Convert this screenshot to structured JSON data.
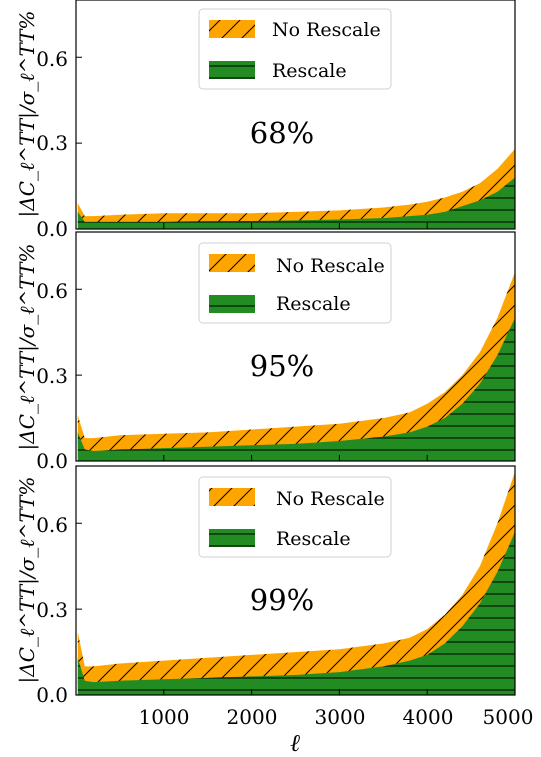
{
  "colors": {
    "no_rescale": "#FFA500",
    "rescale": "#228B22"
  },
  "chart_data": [
    {
      "type": "area",
      "label": "68%",
      "ylabel": "|ΔC_ℓ^TT|/σ_ℓ^TT%",
      "xlim": [
        0,
        5000
      ],
      "ylim": [
        0,
        0.8
      ],
      "yticks": [
        "0.0",
        "0.3",
        "0.6"
      ],
      "legend": [
        "No Rescale",
        "Rescale"
      ],
      "legend_position": "top-center",
      "series": [
        {
          "name": "No Rescale",
          "hatch": "diagonal",
          "x": [
            20,
            100,
            200,
            500,
            1000,
            1500,
            2000,
            2500,
            3000,
            3500,
            3800,
            4000,
            4200,
            4400,
            4600,
            4800,
            5000
          ],
          "y": [
            0.09,
            0.045,
            0.045,
            0.05,
            0.055,
            0.055,
            0.055,
            0.06,
            0.065,
            0.075,
            0.085,
            0.095,
            0.11,
            0.13,
            0.16,
            0.21,
            0.28
          ]
        },
        {
          "name": "Rescale",
          "hatch": "horizontal",
          "x": [
            20,
            100,
            200,
            500,
            1000,
            1500,
            2000,
            2500,
            3000,
            3500,
            3800,
            4000,
            4200,
            4400,
            4600,
            4800,
            5000
          ],
          "y": [
            0.06,
            0.025,
            0.025,
            0.025,
            0.025,
            0.027,
            0.028,
            0.03,
            0.033,
            0.038,
            0.045,
            0.05,
            0.06,
            0.08,
            0.1,
            0.13,
            0.18
          ]
        }
      ]
    },
    {
      "type": "area",
      "label": "95%",
      "ylabel": "|ΔC_ℓ^TT|/σ_ℓ^TT%",
      "xlim": [
        0,
        5000
      ],
      "ylim": [
        0,
        0.8
      ],
      "yticks": [
        "0.0",
        "0.3",
        "0.6"
      ],
      "legend": [
        "No Rescale",
        "Rescale"
      ],
      "legend_position": "top-center",
      "series": [
        {
          "name": "No Rescale",
          "hatch": "diagonal",
          "x": [
            20,
            100,
            200,
            500,
            1000,
            1500,
            2000,
            2500,
            3000,
            3500,
            3800,
            4000,
            4200,
            4400,
            4600,
            4800,
            5000
          ],
          "y": [
            0.16,
            0.08,
            0.08,
            0.09,
            0.095,
            0.1,
            0.11,
            0.12,
            0.13,
            0.15,
            0.17,
            0.2,
            0.24,
            0.3,
            0.38,
            0.5,
            0.66
          ]
        },
        {
          "name": "Rescale",
          "hatch": "horizontal",
          "x": [
            20,
            100,
            200,
            500,
            1000,
            1500,
            2000,
            2500,
            3000,
            3500,
            3800,
            4000,
            4200,
            4400,
            4600,
            4800,
            5000
          ],
          "y": [
            0.1,
            0.04,
            0.035,
            0.04,
            0.045,
            0.05,
            0.055,
            0.06,
            0.07,
            0.085,
            0.1,
            0.12,
            0.15,
            0.2,
            0.27,
            0.37,
            0.5
          ]
        }
      ]
    },
    {
      "type": "area",
      "label": "99%",
      "ylabel": "|ΔC_ℓ^TT|/σ_ℓ^TT%",
      "xlabel": "ℓ",
      "xlim": [
        0,
        5000
      ],
      "ylim": [
        0,
        0.8
      ],
      "yticks": [
        "0.0",
        "0.3",
        "0.6"
      ],
      "xticks": [
        "1000",
        "2000",
        "3000",
        "4000",
        "5000"
      ],
      "legend": [
        "No Rescale",
        "Rescale"
      ],
      "legend_position": "top-center",
      "series": [
        {
          "name": "No Rescale",
          "hatch": "diagonal",
          "x": [
            20,
            100,
            200,
            500,
            1000,
            1500,
            2000,
            2500,
            3000,
            3500,
            3800,
            4000,
            4200,
            4400,
            4600,
            4800,
            5000
          ],
          "y": [
            0.22,
            0.1,
            0.1,
            0.11,
            0.12,
            0.13,
            0.14,
            0.15,
            0.16,
            0.18,
            0.2,
            0.23,
            0.28,
            0.35,
            0.45,
            0.6,
            0.78
          ]
        },
        {
          "name": "Rescale",
          "hatch": "horizontal",
          "x": [
            20,
            100,
            200,
            500,
            1000,
            1500,
            2000,
            2500,
            3000,
            3500,
            3800,
            4000,
            4200,
            4400,
            4600,
            4800,
            5000
          ],
          "y": [
            0.13,
            0.05,
            0.045,
            0.05,
            0.055,
            0.06,
            0.065,
            0.07,
            0.08,
            0.1,
            0.12,
            0.14,
            0.18,
            0.24,
            0.32,
            0.43,
            0.57
          ]
        }
      ]
    }
  ]
}
